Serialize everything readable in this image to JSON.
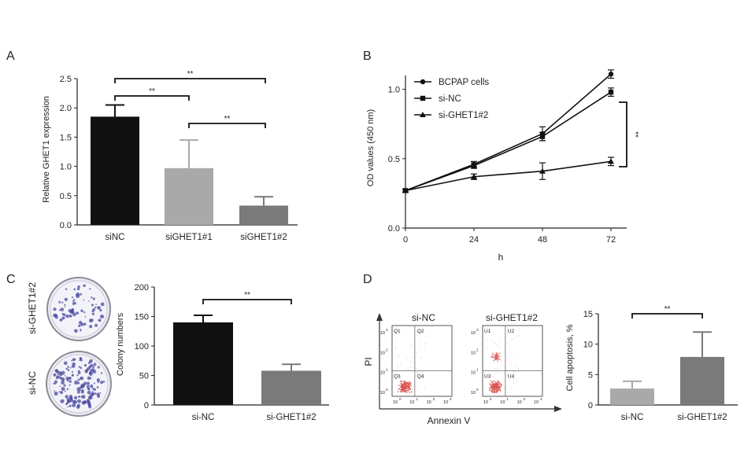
{
  "panels": {
    "A": "A",
    "B": "B",
    "C": "C",
    "D": "D"
  },
  "colors": {
    "black_bar": "#111111",
    "gray_light": "#a9a9a9",
    "gray_dark": "#7a7a7a",
    "flow_dot": "#d9534f",
    "dish_stain": "#4a4aa0"
  },
  "chart_data": [
    {
      "panel": "A",
      "type": "bar",
      "categories": [
        "siNC",
        "siGHET1#1",
        "siGHET1#2"
      ],
      "values": [
        1.85,
        0.97,
        0.33
      ],
      "errors": [
        0.2,
        0.48,
        0.15
      ],
      "ylabel": "Relative GHET1 expression",
      "ylim": [
        0,
        2.5
      ],
      "yticks": [
        "0.0",
        "0.5",
        "1.0",
        "1.5",
        "2.0",
        "2.5"
      ],
      "significance": [
        "**",
        "**",
        "**"
      ]
    },
    {
      "panel": "B",
      "type": "line",
      "x": [
        0,
        24,
        48,
        72
      ],
      "xticks": [
        "0",
        "24",
        "48",
        "72"
      ],
      "xlabel": "h",
      "ylabel": "OD values (450 nm)",
      "ylim": [
        0,
        1.1
      ],
      "yticks": [
        "0.0",
        "0.5",
        "1.0"
      ],
      "series": [
        {
          "name": "BCPAP cells",
          "marker": "circle",
          "values": [
            0.27,
            0.46,
            0.68,
            1.11
          ],
          "errors": [
            0.01,
            0.02,
            0.05,
            0.03
          ]
        },
        {
          "name": "si-NC",
          "marker": "square",
          "values": [
            0.27,
            0.45,
            0.66,
            0.98
          ],
          "errors": [
            0.01,
            0.02,
            0.03,
            0.03
          ]
        },
        {
          "name": "si-GHET1#2",
          "marker": "triangle",
          "values": [
            0.27,
            0.37,
            0.41,
            0.48
          ],
          "errors": [
            0.01,
            0.02,
            0.06,
            0.03
          ]
        }
      ],
      "significance": "**"
    },
    {
      "panel": "C",
      "type": "bar",
      "categories": [
        "si-NC",
        "si-GHET1#2"
      ],
      "values": [
        140,
        58
      ],
      "errors": [
        12,
        11
      ],
      "ylabel": "Colony numbers",
      "ylim": [
        0,
        200
      ],
      "yticks": [
        "0",
        "50",
        "100",
        "150",
        "200"
      ],
      "significance": "**",
      "dish_labels": [
        "si-GHET1#2",
        "si-NC"
      ]
    },
    {
      "panel": "D",
      "type": "bar",
      "categories": [
        "si-NC",
        "si-GHET1#2"
      ],
      "values": [
        2.7,
        7.9
      ],
      "errors": [
        1.2,
        4.1
      ],
      "ylabel": "Cell apoptosis, %",
      "ylim": [
        0,
        15
      ],
      "yticks": [
        "0",
        "5",
        "10",
        "15"
      ],
      "significance": "**"
    }
  ],
  "flow": {
    "y_axis_label": "PI",
    "x_axis_label": "Annexin V",
    "plots": [
      {
        "title": "si-NC",
        "quadrants": [
          "Q1",
          "Q2",
          "Q3",
          "Q4"
        ]
      },
      {
        "title": "si-GHET1#2",
        "quadrants": [
          "U1",
          "U2",
          "U3",
          "U4"
        ]
      }
    ],
    "ticks": [
      "10",
      "0",
      "1",
      "2",
      "3"
    ]
  }
}
